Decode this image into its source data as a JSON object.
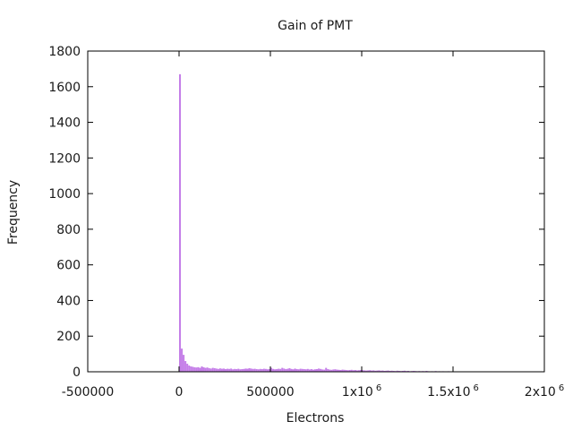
{
  "chart_data": {
    "type": "bar",
    "title": "Gain of PMT",
    "xlabel": "Electrons",
    "ylabel": "Frequency",
    "xlim": [
      -500000,
      2000000
    ],
    "ylim": [
      0,
      1800
    ],
    "bar_color": "#c57fe8",
    "bin_width": 10000,
    "x_ticks": [
      {
        "value": -500000,
        "label": "-500000",
        "exp": ""
      },
      {
        "value": 0,
        "label": "0",
        "exp": ""
      },
      {
        "value": 500000,
        "label": "500000",
        "exp": ""
      },
      {
        "value": 1000000,
        "label": "1x10",
        "exp": "6"
      },
      {
        "value": 1500000,
        "label": "1.5x10",
        "exp": "6"
      },
      {
        "value": 2000000,
        "label": "2x10",
        "exp": "6"
      }
    ],
    "y_ticks": [
      0,
      200,
      400,
      600,
      800,
      1000,
      1200,
      1400,
      1600,
      1800
    ],
    "bins_x": [
      0,
      10000,
      20000,
      30000,
      40000,
      50000,
      60000,
      70000,
      80000,
      90000,
      100000,
      110000,
      120000,
      130000,
      140000,
      150000,
      160000,
      170000,
      180000,
      190000,
      200000,
      210000,
      220000,
      230000,
      240000,
      250000,
      260000,
      270000,
      280000,
      290000,
      300000,
      310000,
      320000,
      330000,
      340000,
      350000,
      360000,
      370000,
      380000,
      390000,
      400000,
      410000,
      420000,
      430000,
      440000,
      450000,
      460000,
      470000,
      480000,
      490000,
      500000,
      510000,
      520000,
      530000,
      540000,
      550000,
      560000,
      570000,
      580000,
      590000,
      600000,
      610000,
      620000,
      630000,
      640000,
      650000,
      660000,
      670000,
      680000,
      690000,
      700000,
      710000,
      720000,
      730000,
      740000,
      750000,
      760000,
      770000,
      780000,
      790000,
      800000,
      810000,
      820000,
      830000,
      840000,
      850000,
      860000,
      870000,
      880000,
      890000,
      900000,
      910000,
      920000,
      930000,
      940000,
      950000,
      960000,
      970000,
      980000,
      990000,
      1000000,
      1010000,
      1020000,
      1030000,
      1040000,
      1050000,
      1060000,
      1070000,
      1080000,
      1090000,
      1100000,
      1110000,
      1120000,
      1130000,
      1140000,
      1150000,
      1160000,
      1170000,
      1180000,
      1190000,
      1200000,
      1210000,
      1220000,
      1230000,
      1240000,
      1250000,
      1260000,
      1270000,
      1280000,
      1290000,
      1300000,
      1310000,
      1320000,
      1330000,
      1340000,
      1350000,
      1360000,
      1370000,
      1380000,
      1390000,
      1400000,
      1410000,
      1420000,
      1430000,
      1440000,
      1450000,
      1460000,
      1470000,
      1480000,
      1490000
    ],
    "bins_count": [
      1670,
      130,
      95,
      60,
      45,
      35,
      30,
      28,
      25,
      24,
      26,
      22,
      30,
      25,
      22,
      24,
      20,
      18,
      22,
      20,
      18,
      16,
      19,
      17,
      18,
      15,
      17,
      16,
      18,
      14,
      16,
      15,
      17,
      14,
      15,
      16,
      18,
      17,
      20,
      18,
      16,
      17,
      15,
      14,
      16,
      15,
      17,
      16,
      14,
      15,
      22,
      16,
      14,
      15,
      17,
      16,
      22,
      18,
      15,
      17,
      20,
      16,
      14,
      18,
      15,
      14,
      17,
      16,
      15,
      14,
      16,
      13,
      15,
      12,
      14,
      15,
      18,
      16,
      13,
      12,
      22,
      15,
      12,
      11,
      13,
      14,
      12,
      11,
      10,
      12,
      11,
      10,
      9,
      10,
      11,
      9,
      10,
      8,
      9,
      10,
      9,
      8,
      7,
      8,
      9,
      7,
      8,
      6,
      7,
      8,
      6,
      7,
      5,
      6,
      7,
      5,
      6,
      5,
      4,
      6,
      5,
      4,
      5,
      6,
      4,
      5,
      3,
      4,
      5,
      4,
      3,
      4,
      3,
      4,
      3,
      5,
      3,
      2,
      3,
      2,
      4,
      2,
      3,
      2,
      3,
      2,
      2,
      3,
      2,
      2
    ]
  }
}
